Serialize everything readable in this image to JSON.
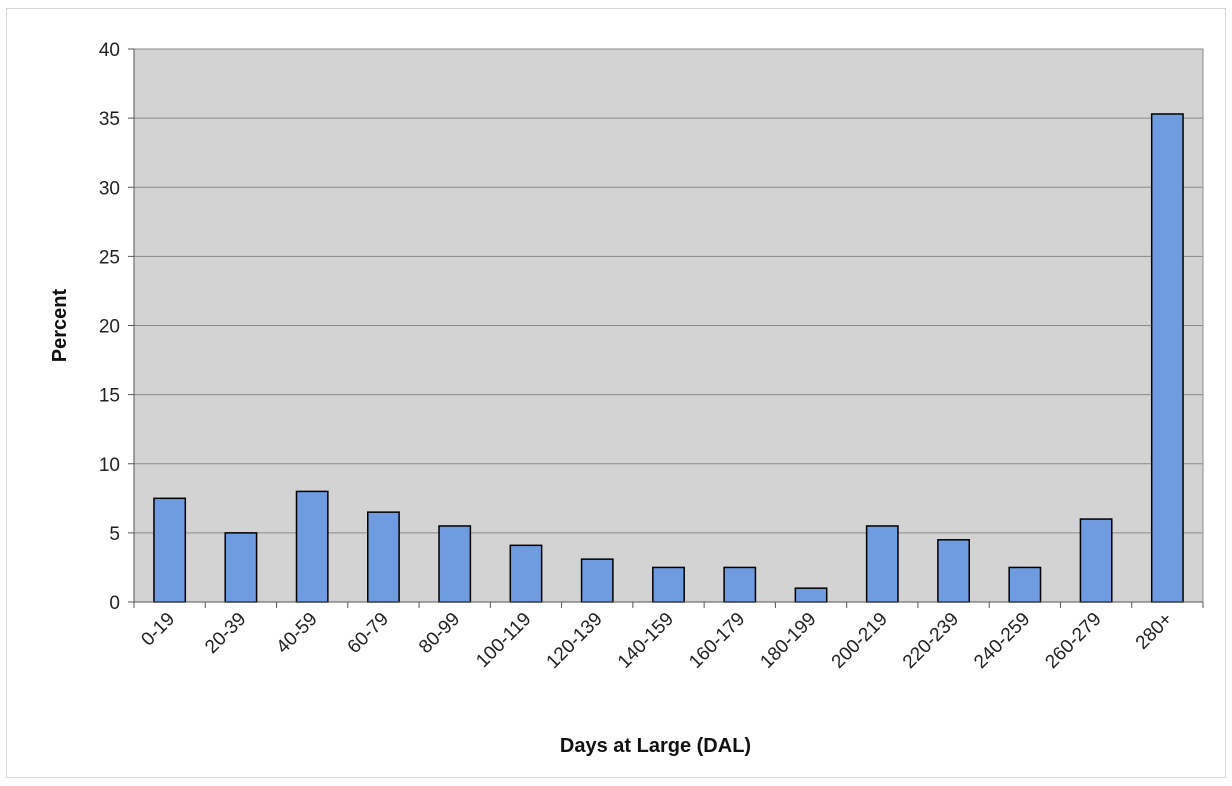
{
  "chart_data": {
    "type": "bar",
    "title": "",
    "xlabel": "Days at Large (DAL)",
    "ylabel": "Percent",
    "categories": [
      "0-19",
      "20-39",
      "40-59",
      "60-79",
      "80-99",
      "100-119",
      "120-139",
      "140-159",
      "160-179",
      "180-199",
      "200-219",
      "220-239",
      "240-259",
      "260-279",
      "280+"
    ],
    "values": [
      7.5,
      5.0,
      8.0,
      6.5,
      5.5,
      4.1,
      3.1,
      2.5,
      2.5,
      1.0,
      5.5,
      4.5,
      2.5,
      6.0,
      35.3
    ],
    "ylim": [
      0,
      40
    ],
    "yticks": [
      0,
      5,
      10,
      15,
      20,
      25,
      30,
      35,
      40
    ],
    "grid": true,
    "legend": "none",
    "colors": {
      "bar_fill": "#6f9be0",
      "bar_stroke": "#000000",
      "plot_background": "#d3d3d3",
      "gridline": "#8a8a8a"
    }
  }
}
